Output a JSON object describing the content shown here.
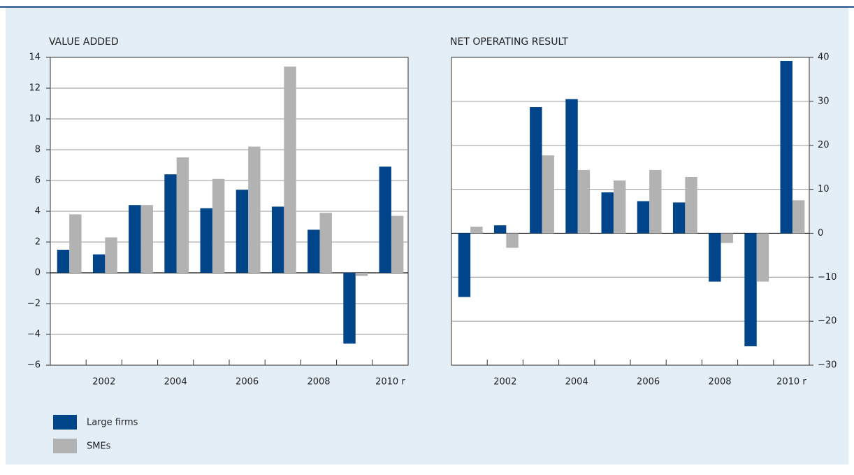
{
  "chart_data": [
    {
      "type": "bar",
      "title": "VALUE ADDED",
      "categories": [
        null,
        "2002",
        null,
        "2004",
        null,
        "2006",
        null,
        "2008",
        null,
        "2010 r"
      ],
      "series": [
        {
          "name": "Large firms",
          "color": "#00448a",
          "values": [
            1.5,
            1.2,
            4.4,
            6.4,
            4.2,
            5.4,
            4.3,
            2.8,
            -4.6,
            6.9
          ]
        },
        {
          "name": "SMEs",
          "color": "#b2b2b2",
          "values": [
            3.8,
            2.3,
            4.4,
            7.5,
            6.1,
            8.2,
            13.4,
            3.9,
            -0.2,
            3.7
          ]
        }
      ],
      "ylim": [
        -6,
        14
      ],
      "yticks": [
        {
          "value": -6,
          "label": "−6"
        },
        {
          "value": -4,
          "label": "−4"
        },
        {
          "value": -2,
          "label": "−2"
        },
        0,
        2,
        4,
        6,
        8,
        10,
        12,
        14
      ],
      "grid": true,
      "y_axis_side": "left"
    },
    {
      "type": "bar",
      "title": "NET OPERATING RESULT",
      "categories": [
        null,
        "2002",
        null,
        "2004",
        null,
        "2006",
        null,
        "2008",
        null,
        "2010 r"
      ],
      "series": [
        {
          "color": "#00448a",
          "values": [
            -14.5,
            1.8,
            28.7,
            30.5,
            9.3,
            7.3,
            7,
            -11,
            -25.7,
            39.2
          ]
        },
        {
          "color": "#b2b2b2",
          "values": [
            1.5,
            -3.3,
            17.7,
            14.4,
            12,
            14.4,
            12.8,
            -2.2,
            -11,
            7.5
          ]
        }
      ],
      "ylim": [
        -30,
        40
      ],
      "yticks": [
        {
          "value": -30,
          "label": "−30"
        },
        {
          "value": -20,
          "label": "−20"
        },
        {
          "value": -10,
          "label": "−10"
        },
        0,
        10,
        20,
        30,
        40
      ],
      "grid": true,
      "y_axis_side": "right"
    }
  ]
}
